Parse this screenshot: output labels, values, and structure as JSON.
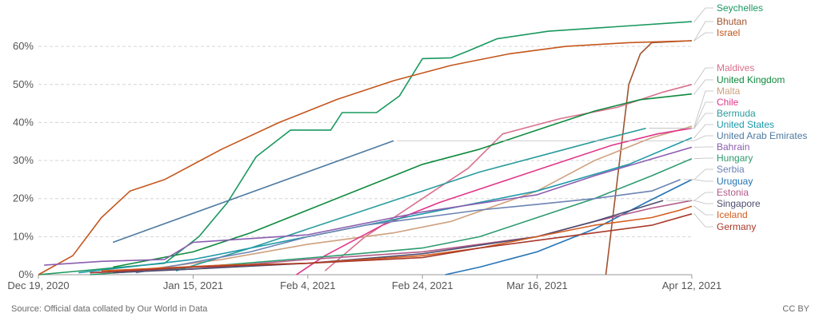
{
  "chart_data": {
    "type": "line",
    "title": "",
    "xlabel": "",
    "ylabel": "",
    "x_ticks": [
      "Dec 19, 2020",
      "Jan 15, 2021",
      "Feb 4, 2021",
      "Feb 24, 2021",
      "Mar 16, 2021",
      "Apr 12, 2021"
    ],
    "y_ticks": [
      "0%",
      "10%",
      "20%",
      "30%",
      "40%",
      "50%",
      "60%"
    ],
    "xlim": [
      "2020-12-19",
      "2021-04-12"
    ],
    "ylim": [
      0,
      68
    ],
    "grid": "horizontal dashed",
    "legend_placement": "right",
    "source": "Source: Official data collated by Our World in Data",
    "license": "CC BY",
    "series": [
      {
        "name": "Seychelles",
        "color": "#19985f",
        "points": [
          [
            "2020-12-19",
            0
          ],
          [
            "2021-01-10",
            3
          ],
          [
            "2021-01-16",
            10
          ],
          [
            "2021-01-21",
            19
          ],
          [
            "2021-01-26",
            31
          ],
          [
            "2021-02-01",
            38
          ],
          [
            "2021-02-05",
            38
          ],
          [
            "2021-02-08",
            38
          ],
          [
            "2021-02-10",
            42.6
          ],
          [
            "2021-02-16",
            42.6
          ],
          [
            "2021-02-20",
            47
          ],
          [
            "2021-02-24",
            56.8
          ],
          [
            "2021-03-01",
            57
          ],
          [
            "2021-03-04",
            58.8
          ],
          [
            "2021-03-09",
            62
          ],
          [
            "2021-03-18",
            64
          ],
          [
            "2021-04-12",
            66.5
          ]
        ]
      },
      {
        "name": "Bhutan",
        "color": "#a0522d",
        "points": [
          [
            "2021-03-28",
            0
          ],
          [
            "2021-04-01",
            50
          ],
          [
            "2021-04-03",
            58
          ],
          [
            "2021-04-05",
            61
          ],
          [
            "2021-04-12",
            61.5
          ]
        ]
      },
      {
        "name": "Israel",
        "color": "#c4561c",
        "points": [
          [
            "2020-12-19",
            0
          ],
          [
            "2020-12-25",
            5
          ],
          [
            "2020-12-30",
            15
          ],
          [
            "2021-01-04",
            22
          ],
          [
            "2021-01-10",
            25
          ],
          [
            "2021-01-20",
            33
          ],
          [
            "2021-01-30",
            40
          ],
          [
            "2021-02-09",
            46
          ],
          [
            "2021-02-19",
            51
          ],
          [
            "2021-03-01",
            55
          ],
          [
            "2021-03-11",
            58
          ],
          [
            "2021-03-21",
            60
          ],
          [
            "2021-04-01",
            61
          ],
          [
            "2021-04-12",
            61.5
          ]
        ]
      },
      {
        "name": "Maldives",
        "color": "#d8708d",
        "points": [
          [
            "2021-02-07",
            1
          ],
          [
            "2021-02-14",
            10
          ],
          [
            "2021-02-24",
            20
          ],
          [
            "2021-03-04",
            28
          ],
          [
            "2021-03-10",
            37
          ],
          [
            "2021-03-20",
            41
          ],
          [
            "2021-03-30",
            44
          ],
          [
            "2021-04-07",
            48
          ],
          [
            "2021-04-12",
            50
          ]
        ]
      },
      {
        "name": "United Kingdom",
        "color": "#0f8a3e",
        "points": [
          [
            "2021-01-01",
            2
          ],
          [
            "2021-01-15",
            6
          ],
          [
            "2021-01-25",
            11
          ],
          [
            "2021-02-04",
            17
          ],
          [
            "2021-02-14",
            23
          ],
          [
            "2021-02-24",
            29
          ],
          [
            "2021-03-06",
            33
          ],
          [
            "2021-03-16",
            38
          ],
          [
            "2021-03-26",
            43
          ],
          [
            "2021-04-03",
            46
          ],
          [
            "2021-04-12",
            47.5
          ]
        ]
      },
      {
        "name": "Malta",
        "color": "#cfa07e",
        "points": [
          [
            "2021-01-05",
            1
          ],
          [
            "2021-01-20",
            4
          ],
          [
            "2021-02-04",
            8
          ],
          [
            "2021-02-19",
            11
          ],
          [
            "2021-03-01",
            14
          ],
          [
            "2021-03-16",
            22
          ],
          [
            "2021-03-26",
            30
          ],
          [
            "2021-04-05",
            36
          ],
          [
            "2021-04-12",
            39
          ]
        ]
      },
      {
        "name": "Chile",
        "color": "#e0368a",
        "points": [
          [
            "2021-02-02",
            0
          ],
          [
            "2021-02-07",
            5
          ],
          [
            "2021-02-17",
            13
          ],
          [
            "2021-02-27",
            19
          ],
          [
            "2021-03-09",
            24
          ],
          [
            "2021-03-19",
            29
          ],
          [
            "2021-03-29",
            34
          ],
          [
            "2021-04-06",
            37
          ],
          [
            "2021-04-12",
            38.5
          ]
        ]
      },
      {
        "name": "Bermuda",
        "color": "#2a9c9c",
        "points": [
          [
            "2021-01-12",
            1
          ],
          [
            "2021-01-25",
            7
          ],
          [
            "2021-02-04",
            12
          ],
          [
            "2021-02-14",
            17
          ],
          [
            "2021-02-24",
            22
          ],
          [
            "2021-03-06",
            27
          ],
          [
            "2021-03-16",
            31
          ],
          [
            "2021-03-26",
            35
          ],
          [
            "2021-04-04",
            38.5
          ]
        ]
      },
      {
        "name": "United States",
        "color": "#1e9aa8",
        "points": [
          [
            "2020-12-26",
            0.5
          ],
          [
            "2021-01-15",
            4
          ],
          [
            "2021-02-04",
            10
          ],
          [
            "2021-02-24",
            16
          ],
          [
            "2021-03-16",
            22
          ],
          [
            "2021-04-01",
            29
          ],
          [
            "2021-04-12",
            36
          ]
        ]
      },
      {
        "name": "United Arab Emirates",
        "color": "#4e7aa0",
        "points": [
          [
            "2021-01-01",
            8.5
          ],
          [
            "2021-02-19",
            35.2
          ]
        ]
      },
      {
        "name": "Bahrain",
        "color": "#8b5db0",
        "points": [
          [
            "2020-12-20",
            2.5
          ],
          [
            "2020-12-30",
            3.5
          ],
          [
            "2021-01-10",
            4
          ],
          [
            "2021-01-15",
            8.5
          ],
          [
            "2021-02-04",
            10.5
          ],
          [
            "2021-02-24",
            16.5
          ],
          [
            "2021-03-16",
            21
          ],
          [
            "2021-03-26",
            26
          ],
          [
            "2021-04-12",
            33.5
          ]
        ]
      },
      {
        "name": "Hungary",
        "color": "#2c9b6f",
        "points": [
          [
            "2020-12-28",
            0
          ],
          [
            "2021-01-20",
            2.5
          ],
          [
            "2021-02-09",
            5
          ],
          [
            "2021-02-24",
            7
          ],
          [
            "2021-03-06",
            10
          ],
          [
            "2021-03-16",
            15
          ],
          [
            "2021-03-26",
            20
          ],
          [
            "2021-04-05",
            26
          ],
          [
            "2021-04-12",
            30.5
          ]
        ]
      },
      {
        "name": "Serbia",
        "color": "#6b83b3",
        "points": [
          [
            "2021-01-05",
            0.5
          ],
          [
            "2021-01-25",
            6
          ],
          [
            "2021-02-04",
            10
          ],
          [
            "2021-02-14",
            13
          ],
          [
            "2021-02-24",
            15
          ],
          [
            "2021-03-06",
            17
          ],
          [
            "2021-03-16",
            18.5
          ],
          [
            "2021-03-26",
            20
          ],
          [
            "2021-04-05",
            22
          ],
          [
            "2021-04-10",
            25
          ]
        ]
      },
      {
        "name": "Uruguay",
        "color": "#2573b4",
        "points": [
          [
            "2021-02-28",
            0
          ],
          [
            "2021-03-06",
            2
          ],
          [
            "2021-03-16",
            6
          ],
          [
            "2021-03-26",
            12
          ],
          [
            "2021-04-04",
            19
          ],
          [
            "2021-04-12",
            25
          ]
        ]
      },
      {
        "name": "Estonia",
        "color": "#b25a8a",
        "points": [
          [
            "2020-12-28",
            0.5
          ],
          [
            "2021-01-15",
            1.5
          ],
          [
            "2021-02-04",
            4
          ],
          [
            "2021-02-24",
            6
          ],
          [
            "2021-03-16",
            10
          ],
          [
            "2021-03-26",
            14
          ],
          [
            "2021-04-05",
            17.5
          ],
          [
            "2021-04-12",
            19.5
          ]
        ]
      },
      {
        "name": "Singapore",
        "color": "#4d4d70",
        "points": [
          [
            "2021-01-01",
            0.5
          ],
          [
            "2021-01-15",
            1.5
          ],
          [
            "2021-02-04",
            3
          ],
          [
            "2021-02-24",
            5.5
          ],
          [
            "2021-03-16",
            10
          ],
          [
            "2021-03-26",
            14
          ],
          [
            "2021-04-07",
            19.5
          ]
        ]
      },
      {
        "name": "Iceland",
        "color": "#d45c1e",
        "points": [
          [
            "2020-12-30",
            1
          ],
          [
            "2021-01-20",
            2.5
          ],
          [
            "2021-02-04",
            3
          ],
          [
            "2021-02-24",
            5
          ],
          [
            "2021-03-06",
            7
          ],
          [
            "2021-03-16",
            10
          ],
          [
            "2021-03-26",
            13
          ],
          [
            "2021-04-05",
            15
          ],
          [
            "2021-04-10",
            17
          ],
          [
            "2021-04-12",
            18
          ]
        ]
      },
      {
        "name": "Germany",
        "color": "#a8392b",
        "points": [
          [
            "2020-12-28",
            0.5
          ],
          [
            "2021-01-15",
            2
          ],
          [
            "2021-02-04",
            3
          ],
          [
            "2021-02-24",
            4.5
          ],
          [
            "2021-03-06",
            7
          ],
          [
            "2021-03-16",
            9
          ],
          [
            "2021-03-26",
            11
          ],
          [
            "2021-04-05",
            13
          ],
          [
            "2021-04-12",
            16
          ]
        ]
      }
    ],
    "labels": [
      {
        "text": "Seychelles",
        "series": "Seychelles"
      },
      {
        "text": "Bhutan",
        "series": "Bhutan"
      },
      {
        "text": "Israel",
        "series": "Israel"
      },
      {
        "text": "Maldives",
        "series": "Maldives"
      },
      {
        "text": "United Kingdom",
        "series": "United Kingdom"
      },
      {
        "text": "Malta",
        "series": "Malta"
      },
      {
        "text": "Chile",
        "series": "Chile"
      },
      {
        "text": "Bermuda",
        "series": "Bermuda"
      },
      {
        "text": "United States",
        "series": "United States"
      },
      {
        "text": "United Arab Emirates",
        "series": "United Arab Emirates"
      },
      {
        "text": "Bahrain",
        "series": "Bahrain"
      },
      {
        "text": "Hungary",
        "series": "Hungary"
      },
      {
        "text": "Serbia",
        "series": "Serbia"
      },
      {
        "text": "Uruguay",
        "series": "Uruguay"
      },
      {
        "text": "Estonia",
        "series": "Estonia"
      },
      {
        "text": "Singapore",
        "series": "Singapore"
      },
      {
        "text": "Iceland",
        "series": "Iceland"
      },
      {
        "text": "Germany",
        "series": "Germany"
      }
    ]
  }
}
